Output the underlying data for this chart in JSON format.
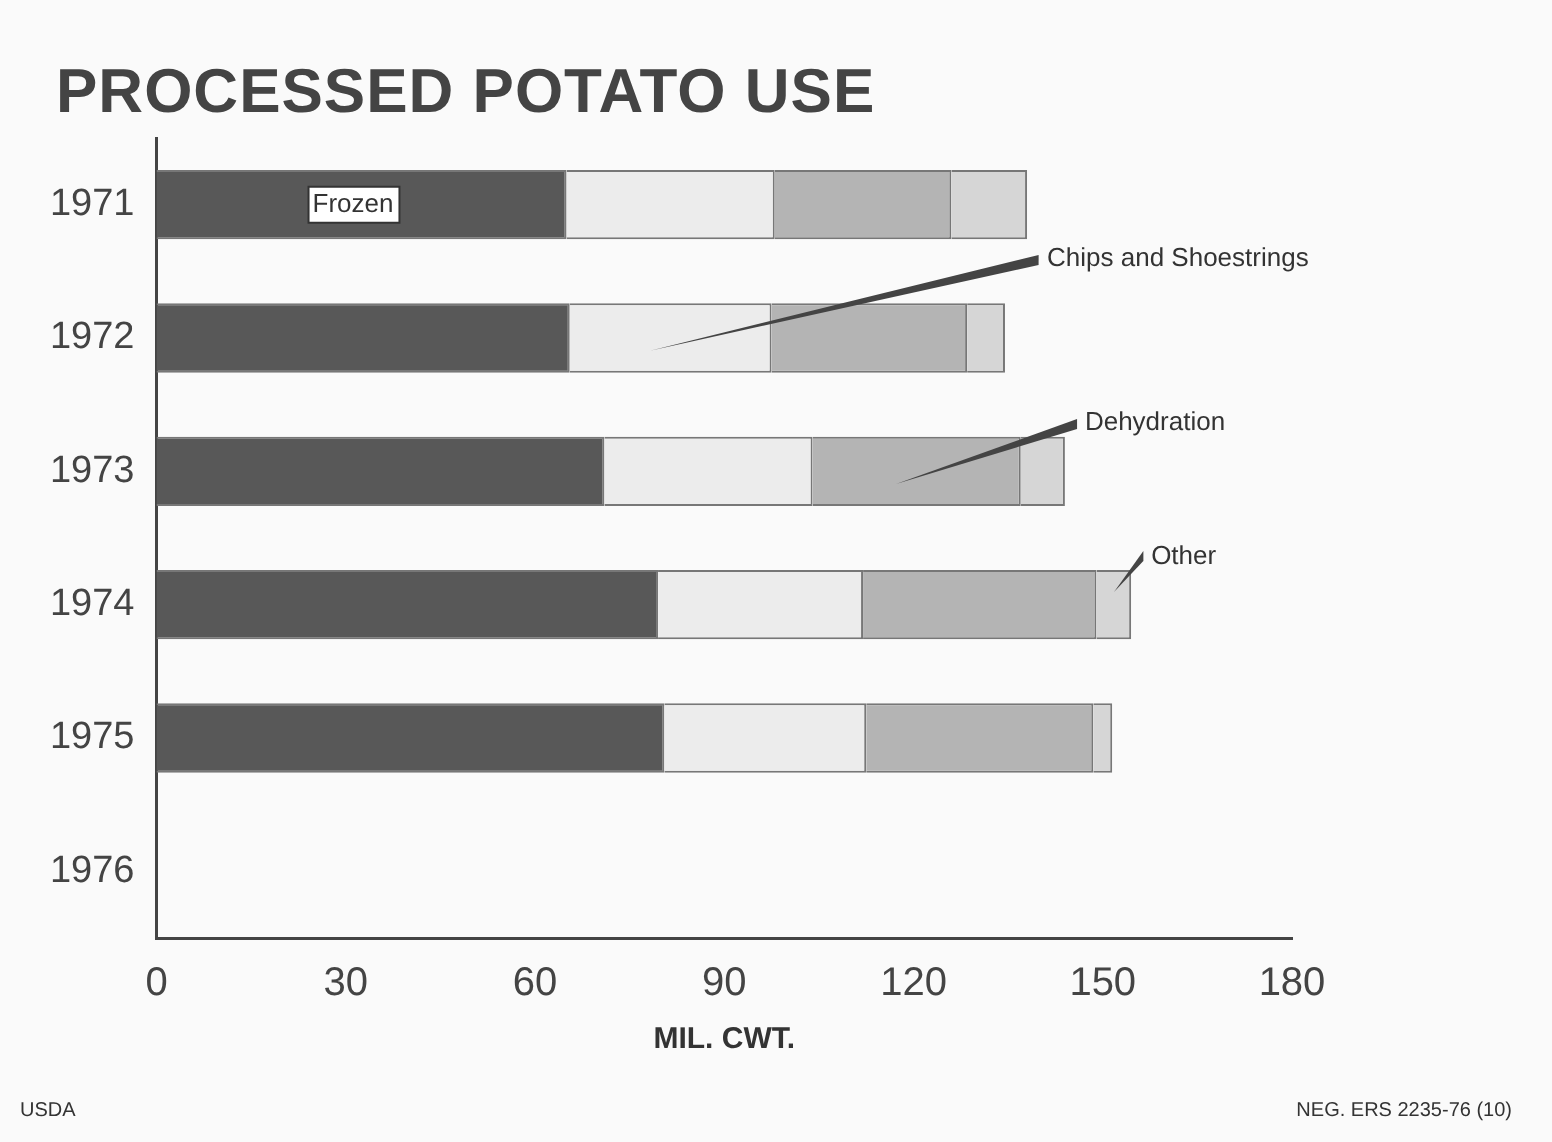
{
  "chart_data": {
    "type": "bar",
    "orientation": "horizontal",
    "stacked": true,
    "title": "PROCESSED POTATO USE",
    "xlabel": "MIL. CWT.",
    "categories": [
      "1971",
      "1972",
      "1973",
      "1974",
      "1975",
      "1976"
    ],
    "series": [
      {
        "name": "Frozen",
        "color": "#585858",
        "values": [
          65,
          65.5,
          71,
          79.5,
          80.5,
          null
        ]
      },
      {
        "name": "Chips and Shoestrings",
        "color": "#ececec",
        "values": [
          33,
          32,
          33,
          32.5,
          32,
          null
        ]
      },
      {
        "name": "Dehydration",
        "color": "#b4b4b4",
        "values": [
          28,
          31,
          33,
          37,
          36,
          null
        ]
      },
      {
        "name": "Other",
        "color": "#d6d6d6",
        "values": [
          12,
          6,
          7,
          5.5,
          3,
          null
        ]
      }
    ],
    "xlim": [
      0,
      180
    ],
    "xticks": [
      0,
      30,
      60,
      90,
      120,
      150,
      180
    ],
    "grid": false,
    "legend": false,
    "annotations": [
      "USDA",
      "NEG. ERS 2235-76 (10)"
    ]
  }
}
